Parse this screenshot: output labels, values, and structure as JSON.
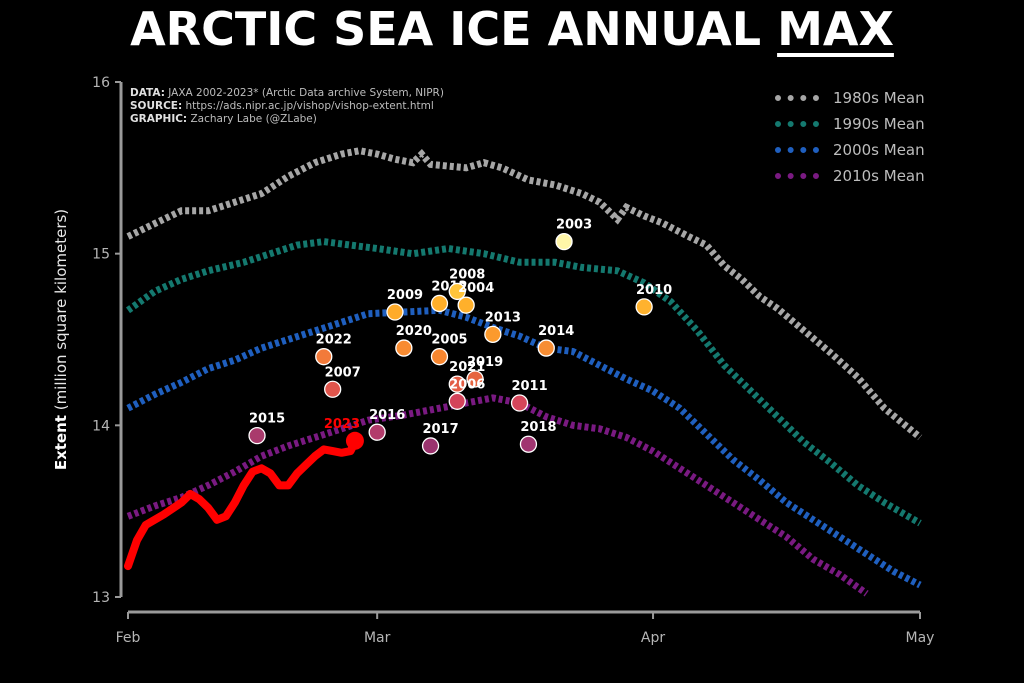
{
  "title_main": "ARCTIC SEA ICE ANNUAL ",
  "title_emph": "MAX",
  "credits": [
    {
      "label": "DATA:",
      "text": " JAXA 2002-2023* (Arctic Data archive System, NIPR)"
    },
    {
      "label": "SOURCE:",
      "text": " https://ads.nipr.ac.jp/vishop/vishop-extent.html"
    },
    {
      "label": "GRAPHIC:",
      "text": " Zachary Labe (@ZLabe)"
    }
  ],
  "chart_data": {
    "type": "line",
    "title": "ARCTIC SEA ICE ANNUAL MAX",
    "ylabel_bold": "Extent",
    "ylabel_rest": " (million square kilometers)",
    "ylim": [
      13,
      16
    ],
    "yticks": [
      "13",
      "14",
      "15",
      "16"
    ],
    "xlim": [
      0,
      89
    ],
    "xticks": [
      {
        "x": 0,
        "label": "Feb"
      },
      {
        "x": 28,
        "label": "Mar"
      },
      {
        "x": 59,
        "label": "Apr"
      },
      {
        "x": 89,
        "label": "May"
      }
    ],
    "grid": false,
    "legend_position": "top-right",
    "series": [
      {
        "name": "1980s Mean",
        "color": "#a6a6a6",
        "points": [
          [
            0,
            15.1
          ],
          [
            4,
            15.2
          ],
          [
            6,
            15.25
          ],
          [
            9,
            15.25
          ],
          [
            12,
            15.3
          ],
          [
            15,
            15.35
          ],
          [
            18,
            15.45
          ],
          [
            21,
            15.53
          ],
          [
            24,
            15.58
          ],
          [
            26,
            15.6
          ],
          [
            28,
            15.58
          ],
          [
            30,
            15.55
          ],
          [
            32,
            15.53
          ],
          [
            33,
            15.58
          ],
          [
            34,
            15.52
          ],
          [
            38,
            15.5
          ],
          [
            40,
            15.53
          ],
          [
            42,
            15.5
          ],
          [
            45,
            15.43
          ],
          [
            48,
            15.4
          ],
          [
            51,
            15.35
          ],
          [
            53,
            15.3
          ],
          [
            55,
            15.2
          ],
          [
            56,
            15.27
          ],
          [
            58,
            15.22
          ],
          [
            60,
            15.18
          ],
          [
            63,
            15.1
          ],
          [
            65,
            15.05
          ],
          [
            67,
            14.93
          ],
          [
            69,
            14.85
          ],
          [
            71,
            14.75
          ],
          [
            73,
            14.68
          ],
          [
            76,
            14.55
          ],
          [
            79,
            14.42
          ],
          [
            82,
            14.28
          ],
          [
            85,
            14.1
          ],
          [
            89,
            13.93
          ]
        ]
      },
      {
        "name": "1990s Mean",
        "color": "#14796f",
        "points": [
          [
            0,
            14.67
          ],
          [
            3,
            14.78
          ],
          [
            6,
            14.85
          ],
          [
            9,
            14.9
          ],
          [
            13,
            14.95
          ],
          [
            16,
            15.0
          ],
          [
            19,
            15.05
          ],
          [
            22,
            15.07
          ],
          [
            25,
            15.05
          ],
          [
            28,
            15.03
          ],
          [
            32,
            15.0
          ],
          [
            36,
            15.03
          ],
          [
            40,
            15.0
          ],
          [
            44,
            14.95
          ],
          [
            48,
            14.95
          ],
          [
            51,
            14.92
          ],
          [
            55,
            14.9
          ],
          [
            58,
            14.83
          ],
          [
            61,
            14.72
          ],
          [
            64,
            14.55
          ],
          [
            67,
            14.35
          ],
          [
            70,
            14.2
          ],
          [
            73,
            14.05
          ],
          [
            76,
            13.9
          ],
          [
            79,
            13.78
          ],
          [
            82,
            13.65
          ],
          [
            85,
            13.55
          ],
          [
            89,
            13.43
          ]
        ]
      },
      {
        "name": "2000s Mean",
        "color": "#1f5fbf",
        "points": [
          [
            0,
            14.1
          ],
          [
            3,
            14.18
          ],
          [
            6,
            14.25
          ],
          [
            9,
            14.33
          ],
          [
            12,
            14.38
          ],
          [
            15,
            14.45
          ],
          [
            18,
            14.5
          ],
          [
            21,
            14.55
          ],
          [
            24,
            14.6
          ],
          [
            27,
            14.65
          ],
          [
            31,
            14.66
          ],
          [
            35,
            14.67
          ],
          [
            38,
            14.63
          ],
          [
            41,
            14.57
          ],
          [
            44,
            14.52
          ],
          [
            47,
            14.45
          ],
          [
            50,
            14.43
          ],
          [
            53,
            14.35
          ],
          [
            56,
            14.27
          ],
          [
            59,
            14.2
          ],
          [
            62,
            14.1
          ],
          [
            65,
            13.95
          ],
          [
            68,
            13.8
          ],
          [
            71,
            13.68
          ],
          [
            74,
            13.55
          ],
          [
            77,
            13.45
          ],
          [
            80,
            13.35
          ],
          [
            83,
            13.25
          ],
          [
            86,
            13.15
          ],
          [
            89,
            13.07
          ]
        ]
      },
      {
        "name": "2010s Mean",
        "color": "#7a1a82",
        "points": [
          [
            0,
            13.47
          ],
          [
            3,
            13.53
          ],
          [
            6,
            13.58
          ],
          [
            9,
            13.65
          ],
          [
            12,
            13.73
          ],
          [
            15,
            13.82
          ],
          [
            18,
            13.88
          ],
          [
            21,
            13.93
          ],
          [
            24,
            13.98
          ],
          [
            27,
            14.03
          ],
          [
            31,
            14.06
          ],
          [
            35,
            14.1
          ],
          [
            38,
            14.13
          ],
          [
            41,
            14.16
          ],
          [
            44,
            14.13
          ],
          [
            47,
            14.05
          ],
          [
            50,
            14.0
          ],
          [
            53,
            13.98
          ],
          [
            56,
            13.93
          ],
          [
            59,
            13.85
          ],
          [
            62,
            13.75
          ],
          [
            65,
            13.65
          ],
          [
            68,
            13.55
          ],
          [
            71,
            13.45
          ],
          [
            74,
            13.35
          ],
          [
            77,
            13.22
          ],
          [
            80,
            13.13
          ],
          [
            83,
            13.02
          ]
        ]
      }
    ],
    "current_year": {
      "name": "2023",
      "color": "#ff0000",
      "points": [
        [
          0,
          13.18
        ],
        [
          1,
          13.33
        ],
        [
          2,
          13.42
        ],
        [
          4,
          13.48
        ],
        [
          6,
          13.55
        ],
        [
          7,
          13.6
        ],
        [
          8,
          13.57
        ],
        [
          9,
          13.52
        ],
        [
          10,
          13.45
        ],
        [
          11,
          13.47
        ],
        [
          12,
          13.55
        ],
        [
          13,
          13.65
        ],
        [
          14,
          13.73
        ],
        [
          15,
          13.75
        ],
        [
          16,
          13.72
        ],
        [
          17,
          13.65
        ],
        [
          18,
          13.65
        ],
        [
          19,
          13.72
        ],
        [
          20,
          13.77
        ],
        [
          21,
          13.82
        ],
        [
          22,
          13.86
        ],
        [
          23,
          13.85
        ],
        [
          24,
          13.84
        ],
        [
          25,
          13.85
        ],
        [
          25.5,
          13.9
        ]
      ]
    },
    "annual_max": [
      {
        "label": "2003",
        "x": 49,
        "y": 15.07,
        "color": "#fff6a8"
      },
      {
        "label": "2010",
        "x": 58,
        "y": 14.69,
        "color": "#ffb22e"
      },
      {
        "label": "2009",
        "x": 30,
        "y": 14.66,
        "color": "#ffab29"
      },
      {
        "label": "2012",
        "x": 35,
        "y": 14.71,
        "color": "#ffae29"
      },
      {
        "label": "2008",
        "x": 37,
        "y": 14.78,
        "color": "#ffc43a"
      },
      {
        "label": "2004",
        "x": 38,
        "y": 14.7,
        "color": "#ffb02b"
      },
      {
        "label": "2013",
        "x": 41,
        "y": 14.53,
        "color": "#fb9a2d"
      },
      {
        "label": "2014",
        "x": 47,
        "y": 14.45,
        "color": "#f78d33"
      },
      {
        "label": "2022",
        "x": 22,
        "y": 14.4,
        "color": "#f27a3a"
      },
      {
        "label": "2020",
        "x": 31,
        "y": 14.45,
        "color": "#f88b31"
      },
      {
        "label": "2005",
        "x": 35,
        "y": 14.4,
        "color": "#f7862f"
      },
      {
        "label": "2007",
        "x": 23,
        "y": 14.21,
        "color": "#e0554c"
      },
      {
        "label": "2021",
        "x": 37,
        "y": 14.24,
        "color": "#e35d45"
      },
      {
        "label": "2019",
        "x": 39,
        "y": 14.27,
        "color": "#e6643f"
      },
      {
        "label": "2006",
        "x": 37,
        "y": 14.14,
        "color": "#d4435a"
      },
      {
        "label": "2011",
        "x": 44,
        "y": 14.13,
        "color": "#d5455a"
      },
      {
        "label": "2015",
        "x": 14.5,
        "y": 13.94,
        "color": "#a93a6c"
      },
      {
        "label": "2016",
        "x": 28,
        "y": 13.96,
        "color": "#b23c6b"
      },
      {
        "label": "2017",
        "x": 34,
        "y": 13.88,
        "color": "#9a336e"
      },
      {
        "label": "2018",
        "x": 45,
        "y": 13.89,
        "color": "#a03570"
      },
      {
        "label": "2023",
        "x": 25.5,
        "y": 13.91,
        "color": "#ff0000"
      }
    ]
  }
}
